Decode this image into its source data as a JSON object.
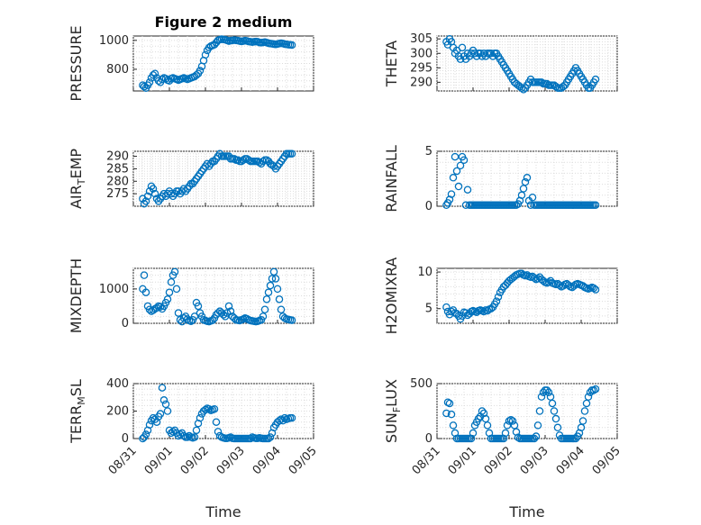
{
  "title": "Figure 2 medium",
  "colors": {
    "marker": "#0072bd",
    "axes": "#262626",
    "grid": "#dcdcdc",
    "background": "#ffffff"
  },
  "x_ticks": [
    "08/31",
    "09/01",
    "09/02",
    "09/03",
    "09/04",
    "09/05"
  ],
  "xlabel": "Time",
  "chart_data": [
    {
      "type": "scatter",
      "ylabel": "PRESSURE",
      "ylim": [
        650,
        1030
      ],
      "yticks": [
        800,
        1000
      ],
      "grid": true,
      "x": [
        0.26,
        0.3,
        0.35,
        0.4,
        0.45,
        0.5,
        0.55,
        0.6,
        0.65,
        0.7,
        0.75,
        0.8,
        0.85,
        0.9,
        0.95,
        1.0,
        1.05,
        1.1,
        1.15,
        1.2,
        1.25,
        1.3,
        1.35,
        1.4,
        1.45,
        1.5,
        1.55,
        1.6,
        1.65,
        1.7,
        1.75,
        1.8,
        1.85,
        1.9,
        1.95,
        2.0,
        2.05,
        2.1,
        2.15,
        2.2,
        2.25,
        2.3,
        2.35,
        2.4,
        2.45,
        2.5,
        2.55,
        2.6,
        2.65,
        2.7,
        2.75,
        2.8,
        2.85,
        2.9,
        2.95,
        3.0,
        3.05,
        3.1,
        3.15,
        3.2,
        3.25,
        3.3,
        3.35,
        3.4,
        3.45,
        3.5,
        3.55,
        3.6,
        3.65,
        3.7,
        3.75,
        3.8,
        3.85,
        3.9,
        3.95,
        4.0,
        4.05,
        4.1,
        4.15,
        4.2,
        4.25,
        4.3,
        4.35,
        4.4
      ],
      "y": [
        690,
        680,
        670,
        690,
        710,
        740,
        760,
        770,
        740,
        720,
        710,
        730,
        740,
        735,
        725,
        720,
        735,
        740,
        735,
        730,
        725,
        730,
        735,
        740,
        735,
        730,
        735,
        740,
        745,
        750,
        760,
        770,
        790,
        820,
        860,
        900,
        930,
        950,
        960,
        965,
        970,
        985,
        1000,
        1005,
        1008,
        1006,
        1004,
        1000,
        995,
        998,
        1000,
        1002,
        1000,
        998,
        995,
        993,
        995,
        998,
        996,
        992,
        990,
        988,
        990,
        992,
        990,
        985,
        984,
        986,
        988,
        984,
        980,
        978,
        976,
        974,
        972,
        975,
        978,
        980,
        978,
        974,
        972,
        970,
        969,
        968
      ]
    },
    {
      "type": "scatter",
      "ylabel": "THETA",
      "ylim": [
        287,
        306
      ],
      "yticks": [
        290,
        295,
        300,
        305
      ],
      "grid": true,
      "x": [
        0.26,
        0.3,
        0.35,
        0.4,
        0.45,
        0.5,
        0.55,
        0.6,
        0.65,
        0.7,
        0.75,
        0.8,
        0.85,
        0.9,
        0.95,
        1.0,
        1.05,
        1.1,
        1.15,
        1.2,
        1.25,
        1.3,
        1.35,
        1.4,
        1.45,
        1.5,
        1.55,
        1.6,
        1.65,
        1.7,
        1.75,
        1.8,
        1.85,
        1.9,
        1.95,
        2.0,
        2.05,
        2.1,
        2.15,
        2.2,
        2.25,
        2.3,
        2.35,
        2.4,
        2.45,
        2.5,
        2.55,
        2.6,
        2.65,
        2.7,
        2.75,
        2.8,
        2.85,
        2.9,
        2.95,
        3.0,
        3.05,
        3.1,
        3.15,
        3.2,
        3.25,
        3.3,
        3.35,
        3.4,
        3.45,
        3.5,
        3.55,
        3.6,
        3.65,
        3.7,
        3.75,
        3.8,
        3.85,
        3.9,
        3.95,
        4.0,
        4.05,
        4.1,
        4.15,
        4.2,
        4.25,
        4.3,
        4.35,
        4.4
      ],
      "y": [
        304,
        303,
        305,
        304,
        302,
        300,
        301,
        299,
        298,
        302,
        299,
        298,
        300,
        299,
        300,
        301,
        300,
        299,
        300,
        300,
        299,
        300,
        299,
        300,
        300,
        300,
        299,
        300,
        300,
        299,
        298,
        297,
        296,
        295,
        294,
        293,
        292,
        291,
        290,
        289.5,
        289,
        288.5,
        288,
        287.5,
        288,
        289,
        290,
        291,
        290,
        290,
        290,
        290,
        290,
        290,
        289.5,
        289.5,
        289.5,
        289,
        289,
        289,
        289,
        288.5,
        288,
        288,
        288,
        288.5,
        289,
        290,
        291,
        292,
        293,
        294,
        295,
        294,
        293,
        292,
        291,
        290,
        289,
        288,
        288,
        289,
        290,
        291
      ]
    },
    {
      "type": "scatter",
      "ylabel": "AIR_TEMP",
      "ylim": [
        270,
        292
      ],
      "yticks": [
        275,
        280,
        285,
        290
      ],
      "grid": true,
      "x": [
        0.26,
        0.3,
        0.35,
        0.4,
        0.45,
        0.5,
        0.55,
        0.6,
        0.65,
        0.7,
        0.75,
        0.8,
        0.85,
        0.9,
        0.95,
        1.0,
        1.05,
        1.1,
        1.15,
        1.2,
        1.25,
        1.3,
        1.35,
        1.4,
        1.45,
        1.5,
        1.55,
        1.6,
        1.65,
        1.7,
        1.75,
        1.8,
        1.85,
        1.9,
        1.95,
        2.0,
        2.05,
        2.1,
        2.15,
        2.2,
        2.25,
        2.3,
        2.35,
        2.4,
        2.45,
        2.5,
        2.55,
        2.6,
        2.65,
        2.7,
        2.75,
        2.8,
        2.85,
        2.9,
        2.95,
        3.0,
        3.05,
        3.1,
        3.15,
        3.2,
        3.25,
        3.3,
        3.35,
        3.4,
        3.45,
        3.5,
        3.55,
        3.6,
        3.65,
        3.7,
        3.75,
        3.8,
        3.85,
        3.9,
        3.95,
        4.0,
        4.05,
        4.1,
        4.15,
        4.2,
        4.25,
        4.3,
        4.35,
        4.4
      ],
      "y": [
        273,
        271,
        272,
        274,
        276,
        278,
        277,
        275,
        273,
        272,
        273,
        274,
        275,
        274,
        275,
        276,
        275,
        274,
        275,
        276,
        276,
        275,
        276,
        277,
        276,
        277,
        278,
        279,
        279,
        280,
        281,
        282,
        283,
        284,
        285,
        286,
        287,
        286,
        287,
        288,
        288,
        289,
        290,
        291,
        290,
        290,
        290,
        290,
        290,
        289,
        289,
        289,
        288.5,
        288.5,
        288,
        288,
        288.5,
        289,
        289,
        288.5,
        288,
        288,
        288,
        288,
        288,
        287.5,
        287,
        288,
        288.5,
        288.5,
        288,
        287,
        286.5,
        286,
        285,
        286,
        287,
        288,
        289,
        290,
        291,
        291,
        291,
        291
      ]
    },
    {
      "type": "scatter",
      "ylabel": "RAINFALL",
      "ylim": [
        0,
        5
      ],
      "yticks": [
        0,
        5
      ],
      "grid": true,
      "x": [
        0.26,
        0.3,
        0.35,
        0.4,
        0.45,
        0.5,
        0.55,
        0.6,
        0.65,
        0.7,
        0.75,
        0.8,
        0.85,
        0.9,
        0.95,
        1.0,
        1.05,
        1.1,
        1.15,
        1.2,
        1.25,
        1.3,
        1.35,
        1.4,
        1.45,
        1.5,
        1.55,
        1.6,
        1.65,
        1.7,
        1.75,
        1.8,
        1.85,
        1.9,
        1.95,
        2.0,
        2.05,
        2.1,
        2.15,
        2.2,
        2.25,
        2.3,
        2.35,
        2.4,
        2.45,
        2.5,
        2.55,
        2.6,
        2.65,
        2.7,
        2.75,
        2.8,
        2.85,
        2.9,
        2.95,
        3.0,
        3.05,
        3.1,
        3.15,
        3.2,
        3.25,
        3.3,
        3.35,
        3.4,
        3.45,
        3.5,
        3.55,
        3.6,
        3.65,
        3.7,
        3.75,
        3.8,
        3.85,
        3.9,
        3.95,
        4.0,
        4.05,
        4.1,
        4.15,
        4.2,
        4.25,
        4.3,
        4.35,
        4.4
      ],
      "y": [
        0.1,
        0.3,
        0.6,
        1.1,
        2.6,
        4.5,
        3.2,
        1.8,
        3.7,
        4.5,
        4.2,
        0.1,
        1.5,
        0.1,
        0.1,
        0.1,
        0.1,
        0.1,
        0.1,
        0.1,
        0.1,
        0.1,
        0.1,
        0.1,
        0.1,
        0.1,
        0.1,
        0.1,
        0.1,
        0.1,
        0.1,
        0.1,
        0.1,
        0.1,
        0.1,
        0.1,
        0.1,
        0.1,
        0.1,
        0.1,
        0.2,
        0.5,
        1.0,
        1.6,
        2.2,
        2.6,
        0.5,
        0.1,
        0.8,
        0.1,
        0.1,
        0.1,
        0.1,
        0.1,
        0.1,
        0.1,
        0.1,
        0.1,
        0.1,
        0.1,
        0.1,
        0.1,
        0.1,
        0.1,
        0.1,
        0.1,
        0.1,
        0.1,
        0.1,
        0.1,
        0.1,
        0.1,
        0.1,
        0.1,
        0.1,
        0.1,
        0.1,
        0.1,
        0.1,
        0.1,
        0.1,
        0.1,
        0.1,
        0.1
      ]
    },
    {
      "type": "scatter",
      "ylabel": "MIXDEPTH",
      "ylim": [
        0,
        1600
      ],
      "yticks": [
        0,
        1000
      ],
      "grid": true,
      "x": [
        0.26,
        0.3,
        0.35,
        0.4,
        0.45,
        0.5,
        0.55,
        0.6,
        0.65,
        0.7,
        0.75,
        0.8,
        0.85,
        0.9,
        0.95,
        1.0,
        1.05,
        1.1,
        1.15,
        1.2,
        1.25,
        1.3,
        1.35,
        1.4,
        1.45,
        1.5,
        1.55,
        1.6,
        1.65,
        1.7,
        1.75,
        1.8,
        1.85,
        1.9,
        1.95,
        2.0,
        2.05,
        2.1,
        2.15,
        2.2,
        2.25,
        2.3,
        2.35,
        2.4,
        2.45,
        2.5,
        2.55,
        2.6,
        2.65,
        2.7,
        2.75,
        2.8,
        2.85,
        2.9,
        2.95,
        3.0,
        3.05,
        3.1,
        3.15,
        3.2,
        3.25,
        3.3,
        3.35,
        3.4,
        3.45,
        3.5,
        3.55,
        3.6,
        3.65,
        3.7,
        3.75,
        3.8,
        3.85,
        3.9,
        3.95,
        4.0,
        4.05,
        4.1,
        4.15,
        4.2,
        4.25,
        4.3,
        4.35,
        4.4
      ],
      "y": [
        1000,
        1400,
        900,
        500,
        400,
        350,
        380,
        420,
        450,
        500,
        480,
        420,
        500,
        600,
        700,
        900,
        1200,
        1400,
        1500,
        1000,
        300,
        100,
        50,
        150,
        200,
        120,
        80,
        60,
        100,
        200,
        600,
        500,
        300,
        200,
        100,
        80,
        60,
        50,
        70,
        90,
        150,
        250,
        300,
        350,
        300,
        250,
        200,
        300,
        500,
        350,
        200,
        150,
        100,
        90,
        80,
        100,
        120,
        150,
        130,
        100,
        80,
        70,
        60,
        50,
        60,
        80,
        100,
        200,
        400,
        700,
        900,
        1100,
        1300,
        1500,
        1300,
        1000,
        700,
        400,
        200,
        150,
        120,
        110,
        100,
        90
      ]
    },
    {
      "type": "scatter",
      "ylabel": "H2OMIXRA",
      "ylim": [
        3,
        10.5
      ],
      "yticks": [
        5,
        10
      ],
      "grid": true,
      "x": [
        0.26,
        0.3,
        0.35,
        0.4,
        0.45,
        0.5,
        0.55,
        0.6,
        0.65,
        0.7,
        0.75,
        0.8,
        0.85,
        0.9,
        0.95,
        1.0,
        1.05,
        1.1,
        1.15,
        1.2,
        1.25,
        1.3,
        1.35,
        1.4,
        1.45,
        1.5,
        1.55,
        1.6,
        1.65,
        1.7,
        1.75,
        1.8,
        1.85,
        1.9,
        1.95,
        2.0,
        2.05,
        2.1,
        2.15,
        2.2,
        2.25,
        2.3,
        2.35,
        2.4,
        2.45,
        2.5,
        2.55,
        2.6,
        2.65,
        2.7,
        2.75,
        2.8,
        2.85,
        2.9,
        2.95,
        3.0,
        3.05,
        3.1,
        3.15,
        3.2,
        3.25,
        3.3,
        3.35,
        3.4,
        3.45,
        3.5,
        3.55,
        3.6,
        3.65,
        3.7,
        3.75,
        3.8,
        3.85,
        3.9,
        3.95,
        4.0,
        4.05,
        4.1,
        4.15,
        4.2,
        4.25,
        4.3,
        4.35,
        4.4
      ],
      "y": [
        5.2,
        4.6,
        4.2,
        4.6,
        4.8,
        4.4,
        4.3,
        4.0,
        3.6,
        4.0,
        4.5,
        4.4,
        4.1,
        4.3,
        4.6,
        4.7,
        4.6,
        4.5,
        4.7,
        4.8,
        4.7,
        4.6,
        4.8,
        4.7,
        4.9,
        5.0,
        5.2,
        5.6,
        6.0,
        6.6,
        7.2,
        7.6,
        8.0,
        8.2,
        8.5,
        8.8,
        9.0,
        9.2,
        9.4,
        9.6,
        9.7,
        9.8,
        9.8,
        9.6,
        9.5,
        9.6,
        9.4,
        9.3,
        9.4,
        9.2,
        9.0,
        9.1,
        9.3,
        9.0,
        8.8,
        8.6,
        8.5,
        8.6,
        8.8,
        8.5,
        8.4,
        8.3,
        8.4,
        8.2,
        8.0,
        8.1,
        8.3,
        8.4,
        8.2,
        8.0,
        7.9,
        8.1,
        8.3,
        8.4,
        8.3,
        8.2,
        8.1,
        7.9,
        7.8,
        7.7,
        7.8,
        7.9,
        7.8,
        7.6
      ]
    },
    {
      "type": "scatter",
      "ylabel": "TERR_MSL",
      "ylim": [
        0,
        400
      ],
      "yticks": [
        0,
        200,
        400
      ],
      "grid": true,
      "x": [
        0.26,
        0.3,
        0.35,
        0.4,
        0.45,
        0.5,
        0.55,
        0.6,
        0.65,
        0.7,
        0.75,
        0.8,
        0.85,
        0.9,
        0.95,
        1.0,
        1.05,
        1.1,
        1.15,
        1.2,
        1.25,
        1.3,
        1.35,
        1.4,
        1.45,
        1.5,
        1.55,
        1.6,
        1.65,
        1.7,
        1.75,
        1.8,
        1.85,
        1.9,
        1.95,
        2.0,
        2.05,
        2.1,
        2.15,
        2.2,
        2.25,
        2.3,
        2.35,
        2.4,
        2.45,
        2.5,
        2.55,
        2.6,
        2.65,
        2.7,
        2.75,
        2.8,
        2.85,
        2.9,
        2.95,
        3.0,
        3.05,
        3.1,
        3.15,
        3.2,
        3.25,
        3.3,
        3.35,
        3.4,
        3.45,
        3.5,
        3.55,
        3.6,
        3.65,
        3.7,
        3.75,
        3.8,
        3.85,
        3.9,
        3.95,
        4.0,
        4.05,
        4.1,
        4.15,
        4.2,
        4.25,
        4.3,
        4.35,
        4.4
      ],
      "y": [
        0,
        10,
        30,
        60,
        100,
        130,
        150,
        140,
        120,
        160,
        180,
        370,
        280,
        250,
        200,
        60,
        40,
        50,
        60,
        40,
        20,
        30,
        40,
        20,
        10,
        10,
        20,
        10,
        5,
        10,
        60,
        110,
        150,
        180,
        200,
        210,
        220,
        215,
        205,
        210,
        215,
        120,
        50,
        20,
        10,
        5,
        2,
        2,
        5,
        10,
        2,
        0,
        0,
        0,
        0,
        0,
        0,
        0,
        0,
        0,
        0,
        10,
        5,
        2,
        2,
        5,
        2,
        0,
        0,
        0,
        0,
        10,
        40,
        80,
        100,
        120,
        130,
        140,
        130,
        150,
        140,
        145,
        150,
        150
      ]
    },
    {
      "type": "scatter",
      "ylabel": "SUN_FLUX",
      "ylim": [
        0,
        500
      ],
      "yticks": [
        0,
        500
      ],
      "grid": true,
      "x": [
        0.26,
        0.3,
        0.35,
        0.4,
        0.45,
        0.5,
        0.55,
        0.6,
        0.65,
        0.7,
        0.75,
        0.8,
        0.85,
        0.9,
        0.95,
        1.0,
        1.05,
        1.1,
        1.15,
        1.2,
        1.25,
        1.3,
        1.35,
        1.4,
        1.45,
        1.5,
        1.55,
        1.6,
        1.65,
        1.7,
        1.75,
        1.8,
        1.85,
        1.9,
        1.95,
        2.0,
        2.05,
        2.1,
        2.15,
        2.2,
        2.25,
        2.3,
        2.35,
        2.4,
        2.45,
        2.5,
        2.55,
        2.6,
        2.65,
        2.7,
        2.75,
        2.8,
        2.85,
        2.9,
        2.95,
        3.0,
        3.05,
        3.1,
        3.15,
        3.2,
        3.25,
        3.3,
        3.35,
        3.4,
        3.45,
        3.5,
        3.55,
        3.6,
        3.65,
        3.7,
        3.75,
        3.8,
        3.85,
        3.9,
        3.95,
        4.0,
        4.05,
        4.1,
        4.15,
        4.2,
        4.25,
        4.3,
        4.35,
        4.4
      ],
      "y": [
        230,
        330,
        320,
        220,
        120,
        50,
        0,
        0,
        0,
        0,
        0,
        0,
        0,
        0,
        0,
        50,
        120,
        150,
        180,
        200,
        250,
        230,
        180,
        120,
        50,
        0,
        0,
        0,
        0,
        0,
        0,
        0,
        0,
        50,
        120,
        160,
        170,
        160,
        120,
        60,
        10,
        0,
        0,
        0,
        0,
        0,
        0,
        0,
        0,
        0,
        20,
        120,
        250,
        380,
        420,
        440,
        440,
        420,
        380,
        320,
        250,
        180,
        100,
        30,
        0,
        0,
        0,
        0,
        0,
        0,
        0,
        0,
        0,
        20,
        50,
        100,
        160,
        250,
        320,
        380,
        420,
        440,
        440,
        450
      ]
    }
  ]
}
